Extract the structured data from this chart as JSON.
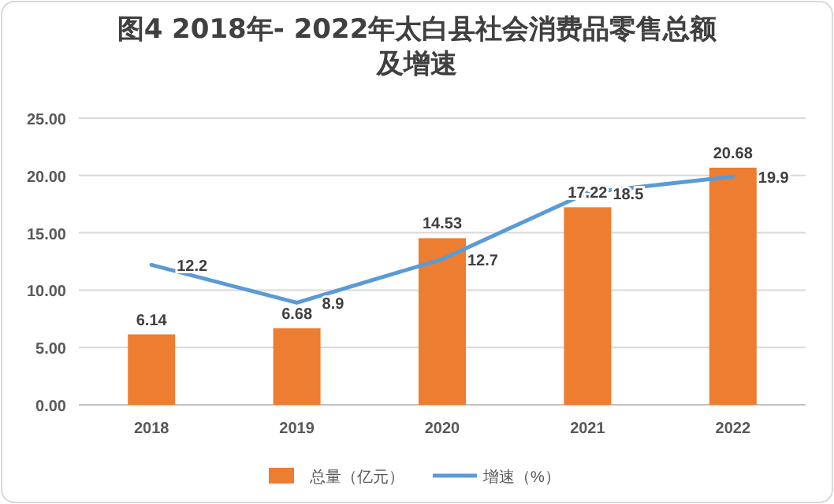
{
  "chart_data": {
    "type": "bar",
    "title": "图4   2018年- 2022年太白县社会消费品零售总额及增速",
    "categories": [
      "2018",
      "2019",
      "2020",
      "2021",
      "2022"
    ],
    "series": [
      {
        "name": "总量（亿元）",
        "color": "#ed7d31",
        "values": [
          6.14,
          6.68,
          14.53,
          17.22,
          20.68
        ]
      },
      {
        "name": "增速（%）",
        "type": "line",
        "color": "#5b9bd5",
        "values": [
          12.2,
          8.9,
          12.7,
          18.5,
          19.9
        ]
      }
    ],
    "ylim": [
      0,
      25
    ],
    "yticks": [
      {
        "value": 0,
        "label": "0.00"
      },
      {
        "value": 5,
        "label": "5.00"
      },
      {
        "value": 10,
        "label": "10.00"
      },
      {
        "value": 15,
        "label": "15.00"
      },
      {
        "value": 20,
        "label": "20.00"
      },
      {
        "value": 25,
        "label": "25.00"
      }
    ],
    "grid": "y",
    "legend": "bottom",
    "data_labels": true,
    "marker": "none",
    "line_style": "solid"
  }
}
